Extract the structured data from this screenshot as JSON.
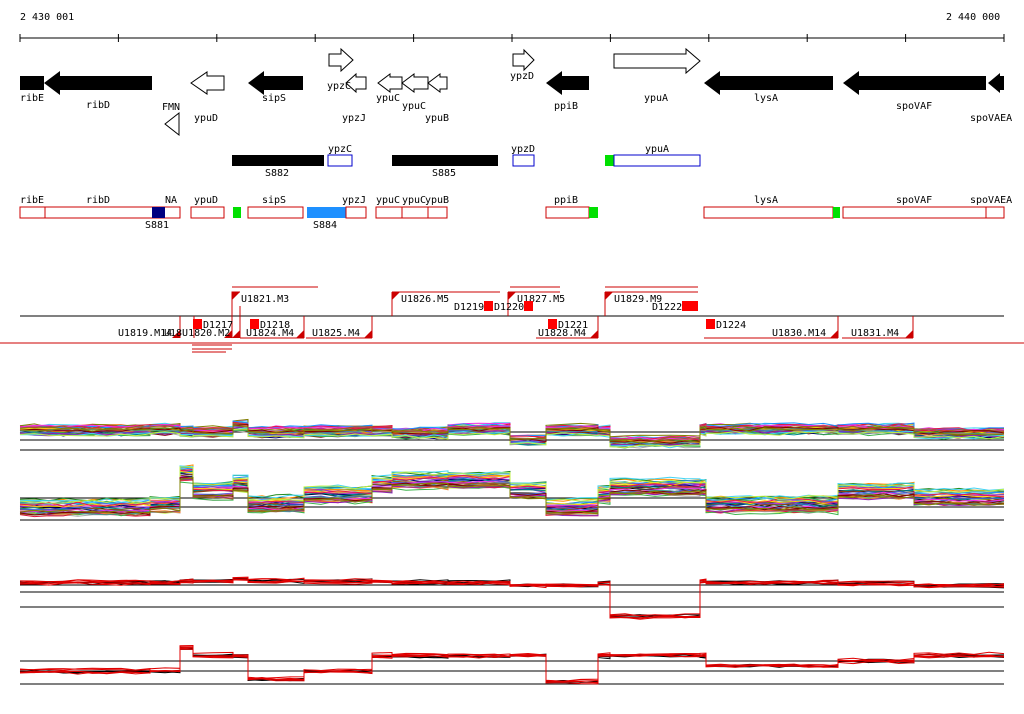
{
  "ruler": {
    "start_label": "2 430 001",
    "end_label": "2 440 000",
    "start": 2430001,
    "end": 2440000
  },
  "colors": {
    "gene_fill": "#000000",
    "promoter_fill": "#00e000",
    "segment_blue": "#0000cc",
    "segment_navy": "#000080",
    "segment_cyan": "#1e90ff",
    "transcript_border": "#cc0000",
    "marker_red": "#ff0000",
    "unit_line": "#cc0000"
  },
  "genes": [
    {
      "name": "ribE",
      "strand": "-",
      "filled": true
    },
    {
      "name": "ribD",
      "strand": "-",
      "filled": true
    },
    {
      "name": "FMN",
      "strand": "-",
      "filled": false
    },
    {
      "name": "ypuD",
      "strand": "-",
      "filled": false
    },
    {
      "name": "sipS",
      "strand": "-",
      "filled": true
    },
    {
      "name": "ypzC",
      "strand": "+",
      "filled": false
    },
    {
      "name": "ypzJ",
      "strand": "-",
      "filled": false
    },
    {
      "name": "ypuC",
      "strand": "-",
      "filled": false
    },
    {
      "name": "ypuC",
      "strand": "-",
      "filled": false
    },
    {
      "name": "ypuB",
      "strand": "-",
      "filled": false
    },
    {
      "name": "ypzD",
      "strand": "+",
      "filled": false
    },
    {
      "name": "ppiB",
      "strand": "-",
      "filled": true
    },
    {
      "name": "ypuA",
      "strand": "+",
      "filled": false
    },
    {
      "name": "lysA",
      "strand": "-",
      "filled": true
    },
    {
      "name": "spoVAF",
      "strand": "-",
      "filled": true
    },
    {
      "name": "spoVAEA",
      "strand": "-",
      "filled": true
    }
  ],
  "segments_plus": [
    {
      "name": "S882",
      "kind": "filled"
    },
    {
      "name": "ypzC",
      "kind": "open"
    },
    {
      "name": "S885",
      "kind": "filled"
    },
    {
      "name": "ypzD",
      "kind": "open"
    },
    {
      "name": "ypuA",
      "kind": "open"
    }
  ],
  "segments_minus": [
    {
      "name": "ribE"
    },
    {
      "name": "ribD"
    },
    {
      "name": "NA"
    },
    {
      "name": "S881"
    },
    {
      "name": "ypuD"
    },
    {
      "name": "sipS"
    },
    {
      "name": "ypzJ"
    },
    {
      "name": "S884"
    },
    {
      "name": "ypuC"
    },
    {
      "name": "ypuC"
    },
    {
      "name": "ypuB"
    },
    {
      "name": "ppiB"
    },
    {
      "name": "lysA"
    },
    {
      "name": "spoVAF"
    },
    {
      "name": "spoVAEA"
    }
  ],
  "units_plus": [
    {
      "name": "U1821.M3"
    },
    {
      "name": "U1826.M5"
    },
    {
      "name": "U1827.M5"
    },
    {
      "name": "U1829.M9"
    }
  ],
  "units_minus": [
    {
      "name": "U1819.M14"
    },
    {
      "name": "U1824.M4"
    },
    {
      "name": "U1825.M4"
    },
    {
      "name": "U1828.M4"
    },
    {
      "name": "U1830.M14"
    },
    {
      "name": "U1831.M4"
    }
  ],
  "downshifts": [
    {
      "name": "D1217"
    },
    {
      "name": "D1218"
    },
    {
      "name": "D1219"
    },
    {
      "name": "D1220"
    },
    {
      "name": "D1221"
    },
    {
      "name": "D1222"
    },
    {
      "name": "D1224"
    }
  ],
  "overlap_labels": {
    "left_cluster": "U18U1820.M2",
    "right_cluster": "D1222"
  },
  "expression_panels": [
    {
      "name": "conditions-plus-strand",
      "multicolor": true
    },
    {
      "name": "conditions-minus-strand",
      "multicolor": true
    },
    {
      "name": "summary-plus-strand",
      "multicolor": false
    },
    {
      "name": "summary-minus-strand",
      "multicolor": false
    }
  ]
}
